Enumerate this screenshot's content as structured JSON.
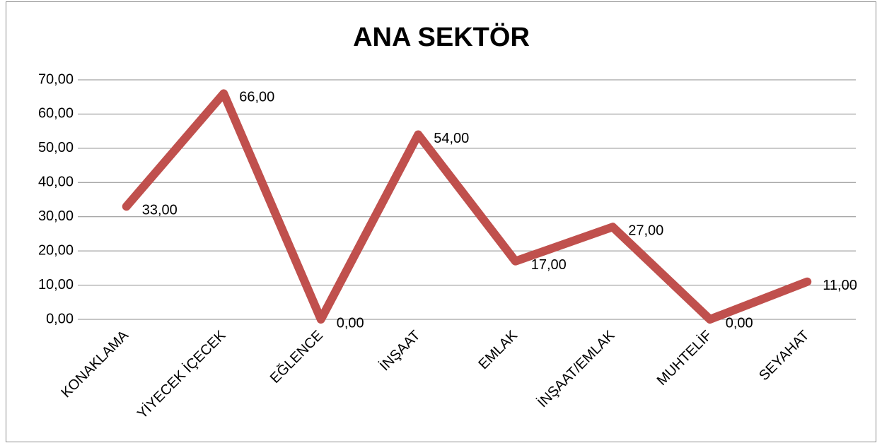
{
  "chart_data": {
    "type": "line",
    "title": "ANA SEKTÖR",
    "categories": [
      "KONAKLAMA",
      "YİYECEK İÇECEK",
      "EĞLENCE",
      "İNŞAAT",
      "EMLAK",
      "İNŞAAT/EMLAK",
      "MUHTELİF",
      "SEYAHAT"
    ],
    "values": [
      33,
      66,
      0,
      54,
      17,
      27,
      0,
      11
    ],
    "value_labels": [
      "33,00",
      "66,00",
      "0,00",
      "54,00",
      "17,00",
      "27,00",
      "0,00",
      "11,00"
    ],
    "color": "#c0504d",
    "ylim": [
      0,
      70
    ],
    "yticks": [
      {
        "value": 0,
        "label": "0,00"
      },
      {
        "value": 10,
        "label": "10,00"
      },
      {
        "value": 20,
        "label": "20,00"
      },
      {
        "value": 30,
        "label": "30,00"
      },
      {
        "value": 40,
        "label": "40,00"
      },
      {
        "value": 50,
        "label": "50,00"
      },
      {
        "value": 60,
        "label": "60,00"
      },
      {
        "value": 70,
        "label": "70,00"
      }
    ],
    "grid": true
  }
}
